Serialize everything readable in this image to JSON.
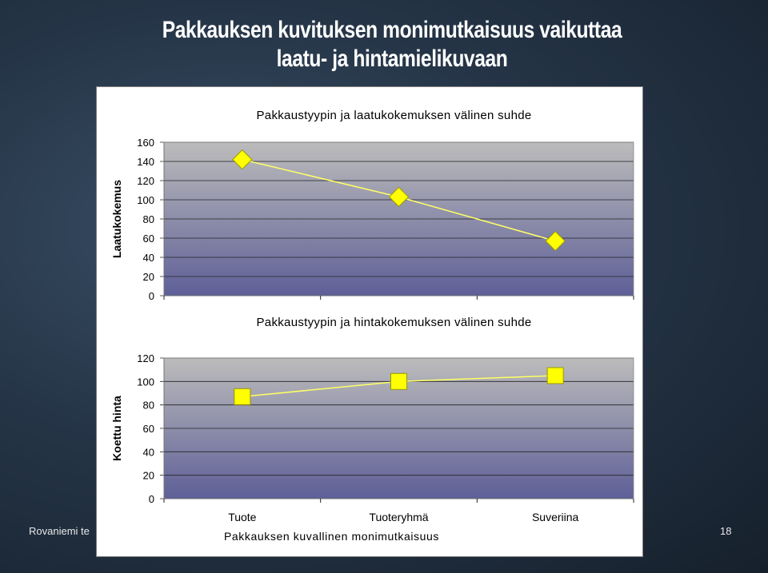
{
  "slide": {
    "title_line1": "Pakkauksen kuvituksen monimutkaisuus vaikuttaa",
    "title_line2": "laatu- ja hintamielikuvaan",
    "footer_left": "Rovaniemi te",
    "page_number": "18"
  },
  "colors": {
    "plot_top": "#bcbcbc",
    "plot_bottom": "#5e5f97",
    "line": "#ffff66",
    "marker": "#ffff00",
    "marker_stroke": "#9a9a00"
  },
  "chart_data": [
    {
      "type": "line",
      "title": "Pakkaustyypin ja laatukokemuksen välinen suhde",
      "ylabel": "Laatukokemus",
      "xlabel": "",
      "ylim": [
        0,
        160
      ],
      "yticks": [
        "0",
        "20",
        "40",
        "60",
        "80",
        "100",
        "120",
        "140",
        "160"
      ],
      "categories": [
        "Tuote",
        "Tuoteryhmä",
        "Suveriina"
      ],
      "marker": "diamond",
      "grid": true,
      "series": [
        {
          "values": [
            142,
            103,
            57
          ]
        }
      ]
    },
    {
      "type": "line",
      "title": "Pakkaustyypin ja hintakokemuksen välinen suhde",
      "ylabel": "Koettu hinta",
      "xlabel": "Pakkauksen kuvallinen monimutkaisuus",
      "ylim": [
        0,
        120
      ],
      "yticks": [
        "0",
        "20",
        "40",
        "60",
        "80",
        "100",
        "120"
      ],
      "categories": [
        "Tuote",
        "Tuoteryhmä",
        "Suveriina"
      ],
      "marker": "square",
      "grid": true,
      "series": [
        {
          "values": [
            87,
            100,
            105
          ]
        }
      ]
    }
  ]
}
